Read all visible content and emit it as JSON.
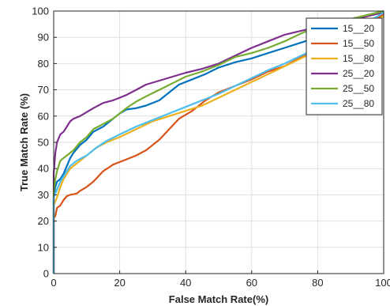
{
  "chart_data": {
    "type": "line",
    "xlabel": "False Match Rate(%)",
    "ylabel": "True Match Rate (%)",
    "xlim": [
      0,
      100
    ],
    "ylim": [
      0,
      100
    ],
    "xticks": [
      0,
      20,
      40,
      60,
      80,
      100
    ],
    "yticks": [
      0,
      10,
      20,
      30,
      40,
      50,
      60,
      70,
      80,
      90,
      100
    ],
    "grid": true,
    "legend_position": "top-right",
    "series": [
      {
        "name": "15__20",
        "color": "#0072BD",
        "points": [
          [
            0,
            0
          ],
          [
            0,
            29
          ],
          [
            0.5,
            33
          ],
          [
            1,
            35
          ],
          [
            2,
            36
          ],
          [
            3,
            38
          ],
          [
            4,
            41
          ],
          [
            5,
            44
          ],
          [
            6,
            46
          ],
          [
            8,
            49
          ],
          [
            10,
            51
          ],
          [
            12,
            54
          ],
          [
            15,
            56
          ],
          [
            18,
            59
          ],
          [
            20,
            61
          ],
          [
            22,
            62.5
          ],
          [
            25,
            63
          ],
          [
            28,
            64
          ],
          [
            32,
            66
          ],
          [
            35,
            69
          ],
          [
            38,
            72
          ],
          [
            42,
            74
          ],
          [
            46,
            76
          ],
          [
            50,
            78.5
          ],
          [
            55,
            80.5
          ],
          [
            60,
            82
          ],
          [
            65,
            84
          ],
          [
            70,
            86
          ],
          [
            75,
            88
          ],
          [
            80,
            90
          ],
          [
            85,
            91.5
          ],
          [
            90,
            93.5
          ],
          [
            95,
            95
          ],
          [
            98,
            96.5
          ],
          [
            100,
            98
          ]
        ]
      },
      {
        "name": "15__50",
        "color": "#D95319",
        "points": [
          [
            0,
            0
          ],
          [
            0,
            21
          ],
          [
            0.5,
            22
          ],
          [
            1,
            25
          ],
          [
            2,
            26
          ],
          [
            3,
            28
          ],
          [
            4,
            29.5
          ],
          [
            5,
            30
          ],
          [
            7,
            30.5
          ],
          [
            8,
            31.5
          ],
          [
            10,
            33
          ],
          [
            12,
            35
          ],
          [
            15,
            39
          ],
          [
            18,
            41.5
          ],
          [
            20,
            42.5
          ],
          [
            22,
            43.5
          ],
          [
            25,
            45
          ],
          [
            28,
            47
          ],
          [
            32,
            51
          ],
          [
            35,
            55
          ],
          [
            38,
            59
          ],
          [
            42,
            62
          ],
          [
            46,
            66
          ],
          [
            50,
            69
          ],
          [
            55,
            71.5
          ],
          [
            60,
            74
          ],
          [
            65,
            77
          ],
          [
            70,
            79
          ],
          [
            75,
            82.5
          ],
          [
            80,
            86
          ],
          [
            85,
            89
          ],
          [
            90,
            92
          ],
          [
            95,
            95
          ],
          [
            98,
            97
          ],
          [
            100,
            99
          ]
        ]
      },
      {
        "name": "15__80",
        "color": "#EDB120",
        "points": [
          [
            0,
            0
          ],
          [
            0,
            26
          ],
          [
            1,
            29
          ],
          [
            2,
            33
          ],
          [
            3,
            36
          ],
          [
            4,
            38
          ],
          [
            5,
            40
          ],
          [
            7,
            42
          ],
          [
            10,
            45
          ],
          [
            13,
            48
          ],
          [
            16,
            50
          ],
          [
            20,
            52
          ],
          [
            25,
            55
          ],
          [
            30,
            58
          ],
          [
            35,
            60
          ],
          [
            40,
            62
          ],
          [
            45,
            64
          ],
          [
            50,
            67
          ],
          [
            55,
            70
          ],
          [
            60,
            73
          ],
          [
            65,
            76
          ],
          [
            70,
            79
          ],
          [
            75,
            82
          ],
          [
            80,
            85
          ],
          [
            85,
            88
          ],
          [
            90,
            91
          ],
          [
            95,
            94
          ],
          [
            100,
            98
          ]
        ]
      },
      {
        "name": "25__20",
        "color": "#7E2F8E",
        "points": [
          [
            0,
            0
          ],
          [
            0,
            38
          ],
          [
            0.5,
            46
          ],
          [
            1,
            50
          ],
          [
            2,
            53
          ],
          [
            3,
            54
          ],
          [
            4,
            56
          ],
          [
            5,
            58
          ],
          [
            6,
            59
          ],
          [
            8,
            60
          ],
          [
            10,
            61.5
          ],
          [
            12,
            63
          ],
          [
            15,
            65
          ],
          [
            18,
            66
          ],
          [
            20,
            67
          ],
          [
            22,
            68
          ],
          [
            25,
            70
          ],
          [
            28,
            72
          ],
          [
            32,
            73.5
          ],
          [
            36,
            75
          ],
          [
            40,
            76.5
          ],
          [
            45,
            78
          ],
          [
            50,
            80
          ],
          [
            55,
            83
          ],
          [
            60,
            86
          ],
          [
            65,
            88.5
          ],
          [
            70,
            91
          ],
          [
            75,
            92.5
          ],
          [
            80,
            94
          ],
          [
            85,
            95.5
          ],
          [
            90,
            96.5
          ],
          [
            95,
            98
          ],
          [
            100,
            99.5
          ]
        ]
      },
      {
        "name": "25__50",
        "color": "#77AC30",
        "points": [
          [
            0,
            0
          ],
          [
            0,
            31
          ],
          [
            0.5,
            36
          ],
          [
            1,
            39
          ],
          [
            2,
            43
          ],
          [
            3,
            44
          ],
          [
            4,
            45
          ],
          [
            6,
            47
          ],
          [
            8,
            50
          ],
          [
            10,
            52
          ],
          [
            12,
            55
          ],
          [
            15,
            57
          ],
          [
            18,
            59
          ],
          [
            20,
            61
          ],
          [
            22,
            63
          ],
          [
            25,
            65.5
          ],
          [
            28,
            67.5
          ],
          [
            32,
            70
          ],
          [
            36,
            72.5
          ],
          [
            40,
            75
          ],
          [
            45,
            77
          ],
          [
            50,
            79.5
          ],
          [
            55,
            82.5
          ],
          [
            60,
            84
          ],
          [
            65,
            86
          ],
          [
            70,
            88.5
          ],
          [
            75,
            91.5
          ],
          [
            80,
            94
          ],
          [
            85,
            95.5
          ],
          [
            90,
            97
          ],
          [
            95,
            98.5
          ],
          [
            100,
            100
          ]
        ]
      },
      {
        "name": "25__80",
        "color": "#4DBEEE",
        "points": [
          [
            0,
            0
          ],
          [
            0,
            29
          ],
          [
            1,
            32
          ],
          [
            2,
            35
          ],
          [
            3,
            37
          ],
          [
            4,
            39
          ],
          [
            5,
            41
          ],
          [
            7,
            43
          ],
          [
            10,
            45
          ],
          [
            13,
            48
          ],
          [
            16,
            50.5
          ],
          [
            20,
            53
          ],
          [
            25,
            56
          ],
          [
            30,
            58.5
          ],
          [
            35,
            61
          ],
          [
            40,
            63.5
          ],
          [
            45,
            66
          ],
          [
            50,
            68.5
          ],
          [
            55,
            71.5
          ],
          [
            60,
            74.5
          ],
          [
            65,
            77.5
          ],
          [
            70,
            80
          ],
          [
            75,
            83
          ],
          [
            80,
            86
          ],
          [
            85,
            88.5
          ],
          [
            90,
            92
          ],
          [
            95,
            95.5
          ],
          [
            100,
            99.5
          ]
        ]
      }
    ]
  }
}
